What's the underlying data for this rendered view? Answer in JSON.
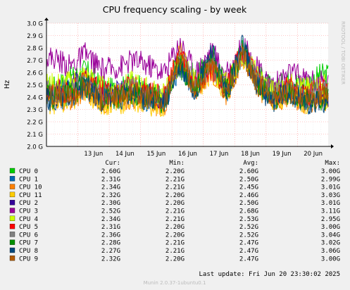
{
  "title": "CPU frequency scaling - by week",
  "watermark": "RRDTOOL / TOBI OETIKER",
  "footer": "Munin 2.0.37-1ubuntu0.1",
  "legend_header": {
    "cur": "Cur:",
    "min": "Min:",
    "avg": "Avg:",
    "max": "Max:"
  },
  "last_update": "Last update: Fri Jun 20 23:30:02 2025",
  "legend": [
    {
      "name": "CPU 0",
      "color": "#00cc00",
      "cur": "2.60G",
      "min": "2.20G",
      "avg": "2.60G",
      "max": "3.00G"
    },
    {
      "name": "CPU 1",
      "color": "#0066b3",
      "cur": "2.31G",
      "min": "2.21G",
      "avg": "2.50G",
      "max": "2.99G"
    },
    {
      "name": "CPU 10",
      "color": "#ff8000",
      "cur": "2.34G",
      "min": "2.21G",
      "avg": "2.45G",
      "max": "3.01G"
    },
    {
      "name": "CPU 11",
      "color": "#ffcc00",
      "cur": "2.32G",
      "min": "2.20G",
      "avg": "2.46G",
      "max": "3.03G"
    },
    {
      "name": "CPU 2",
      "color": "#330099",
      "cur": "2.30G",
      "min": "2.20G",
      "avg": "2.50G",
      "max": "3.01G"
    },
    {
      "name": "CPU 3",
      "color": "#990099",
      "cur": "2.52G",
      "min": "2.21G",
      "avg": "2.68G",
      "max": "3.11G"
    },
    {
      "name": "CPU 4",
      "color": "#ccff00",
      "cur": "2.34G",
      "min": "2.21G",
      "avg": "2.53G",
      "max": "2.95G"
    },
    {
      "name": "CPU 5",
      "color": "#ff0000",
      "cur": "2.31G",
      "min": "2.20G",
      "avg": "2.52G",
      "max": "3.00G"
    },
    {
      "name": "CPU 6",
      "color": "#808080",
      "cur": "2.36G",
      "min": "2.20G",
      "avg": "2.52G",
      "max": "3.04G"
    },
    {
      "name": "CPU 7",
      "color": "#008f00",
      "cur": "2.28G",
      "min": "2.21G",
      "avg": "2.47G",
      "max": "3.02G"
    },
    {
      "name": "CPU 8",
      "color": "#00487d",
      "cur": "2.27G",
      "min": "2.21G",
      "avg": "2.47G",
      "max": "3.06G"
    },
    {
      "name": "CPU 9",
      "color": "#b35a00",
      "cur": "2.32G",
      "min": "2.20G",
      "avg": "2.47G",
      "max": "3.00G"
    }
  ],
  "chart_data": {
    "type": "line",
    "title": "CPU frequency scaling - by week",
    "xlabel": "",
    "ylabel": "Hz",
    "ylim": [
      2.0,
      3.0
    ],
    "y_ticks": [
      "2.0 G",
      "2.1 G",
      "2.2 G",
      "2.3 G",
      "2.4 G",
      "2.5 G",
      "2.6 G",
      "2.7 G",
      "2.8 G",
      "2.9 G",
      "3.0 G"
    ],
    "x_ticks": [
      "13 Jun",
      "14 Jun",
      "15 Jun",
      "16 Jun",
      "17 Jun",
      "18 Jun",
      "19 Jun",
      "20 Jun"
    ],
    "grid": true,
    "x_range": [
      "2025-06-12 00:00",
      "2025-06-20 23:30"
    ],
    "x": [
      "12 Jun 06:00",
      "12 Jun 18:00",
      "13 Jun 06:00",
      "13 Jun 18:00",
      "14 Jun 06:00",
      "14 Jun 18:00",
      "15 Jun 06:00",
      "15 Jun 18:00",
      "16 Jun 06:00",
      "16 Jun 18:00",
      "17 Jun 06:00",
      "17 Jun 18:00",
      "18 Jun 06:00",
      "18 Jun 18:00",
      "19 Jun 06:00",
      "19 Jun 18:00",
      "20 Jun 06:00",
      "20 Jun 18:00"
    ],
    "series": [
      {
        "name": "CPU 0",
        "color": "#00cc00",
        "values": [
          2.48,
          2.55,
          2.62,
          2.48,
          2.45,
          2.52,
          2.43,
          2.4,
          2.72,
          2.55,
          2.7,
          2.5,
          2.8,
          2.58,
          2.45,
          2.55,
          2.5,
          2.58
        ]
      },
      {
        "name": "CPU 1",
        "color": "#0066b3",
        "values": [
          2.42,
          2.45,
          2.5,
          2.38,
          2.4,
          2.42,
          2.38,
          2.36,
          2.65,
          2.48,
          2.7,
          2.45,
          2.75,
          2.52,
          2.38,
          2.45,
          2.35,
          2.4
        ]
      },
      {
        "name": "CPU 10",
        "color": "#ff8000",
        "values": [
          2.4,
          2.38,
          2.46,
          2.36,
          2.38,
          2.4,
          2.36,
          2.33,
          2.72,
          2.45,
          2.62,
          2.42,
          2.72,
          2.48,
          2.36,
          2.42,
          2.36,
          2.38
        ]
      },
      {
        "name": "CPU 11",
        "color": "#ffcc00",
        "values": [
          2.36,
          2.35,
          2.45,
          2.35,
          2.34,
          2.38,
          2.35,
          2.3,
          2.78,
          2.46,
          2.6,
          2.44,
          2.74,
          2.5,
          2.38,
          2.43,
          2.36,
          2.4
        ]
      },
      {
        "name": "CPU 2",
        "color": "#330099",
        "values": [
          2.45,
          2.48,
          2.55,
          2.42,
          2.45,
          2.48,
          2.42,
          2.38,
          2.68,
          2.48,
          2.72,
          2.46,
          2.76,
          2.55,
          2.42,
          2.48,
          2.4,
          2.42
        ]
      },
      {
        "name": "CPU 3",
        "color": "#990099",
        "values": [
          2.72,
          2.65,
          2.75,
          2.62,
          2.64,
          2.7,
          2.66,
          2.6,
          2.85,
          2.6,
          2.78,
          2.58,
          2.82,
          2.62,
          2.5,
          2.6,
          2.55,
          2.52
        ]
      },
      {
        "name": "CPU 4",
        "color": "#ccff00",
        "values": [
          2.5,
          2.52,
          2.58,
          2.48,
          2.46,
          2.52,
          2.46,
          2.42,
          2.7,
          2.52,
          2.66,
          2.5,
          2.76,
          2.56,
          2.44,
          2.5,
          2.46,
          2.5
        ]
      },
      {
        "name": "CPU 5",
        "color": "#ff0000",
        "values": [
          2.46,
          2.44,
          2.54,
          2.44,
          2.42,
          2.5,
          2.44,
          2.4,
          2.76,
          2.5,
          2.64,
          2.48,
          2.78,
          2.54,
          2.42,
          2.48,
          2.42,
          2.46
        ]
      },
      {
        "name": "CPU 6",
        "color": "#808080",
        "values": [
          2.44,
          2.46,
          2.52,
          2.42,
          2.42,
          2.48,
          2.42,
          2.38,
          2.7,
          2.5,
          2.66,
          2.48,
          2.76,
          2.55,
          2.43,
          2.48,
          2.42,
          2.44
        ]
      },
      {
        "name": "CPU 7",
        "color": "#008f00",
        "values": [
          2.4,
          2.42,
          2.5,
          2.4,
          2.4,
          2.44,
          2.4,
          2.36,
          2.66,
          2.46,
          2.76,
          2.44,
          2.8,
          2.5,
          2.38,
          2.44,
          2.38,
          2.38
        ]
      },
      {
        "name": "CPU 8",
        "color": "#00487d",
        "values": [
          2.38,
          2.4,
          2.48,
          2.38,
          2.38,
          2.42,
          2.38,
          2.34,
          2.64,
          2.44,
          2.78,
          2.42,
          2.82,
          2.48,
          2.36,
          2.42,
          2.36,
          2.36
        ]
      },
      {
        "name": "CPU 9",
        "color": "#b35a00",
        "values": [
          2.42,
          2.4,
          2.48,
          2.38,
          2.4,
          2.44,
          2.4,
          2.35,
          2.72,
          2.46,
          2.64,
          2.44,
          2.74,
          2.5,
          2.4,
          2.45,
          2.4,
          2.42
        ]
      }
    ]
  }
}
